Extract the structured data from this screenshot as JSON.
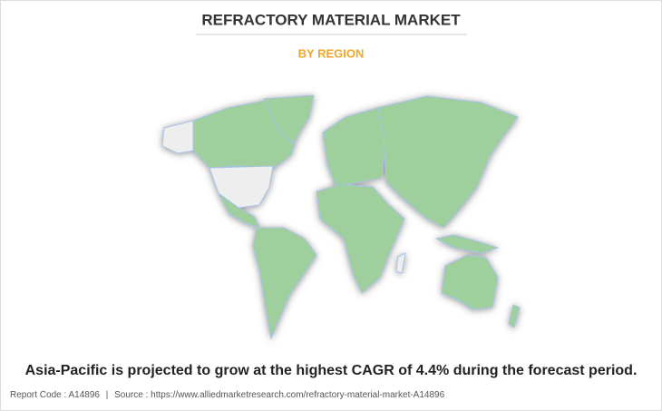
{
  "header": {
    "title": "REFRACTORY MATERIAL MARKET",
    "subtitle": "BY REGION"
  },
  "caption": "Asia-Pacific is projected to grow at the highest CAGR of 4.4% during the forecast period.",
  "footer": {
    "report_code": "Report Code : A14896",
    "separator": "|",
    "source": "Source : https://www.alliedmarketresearch.com/refractory-material-market-A14896"
  }
}
